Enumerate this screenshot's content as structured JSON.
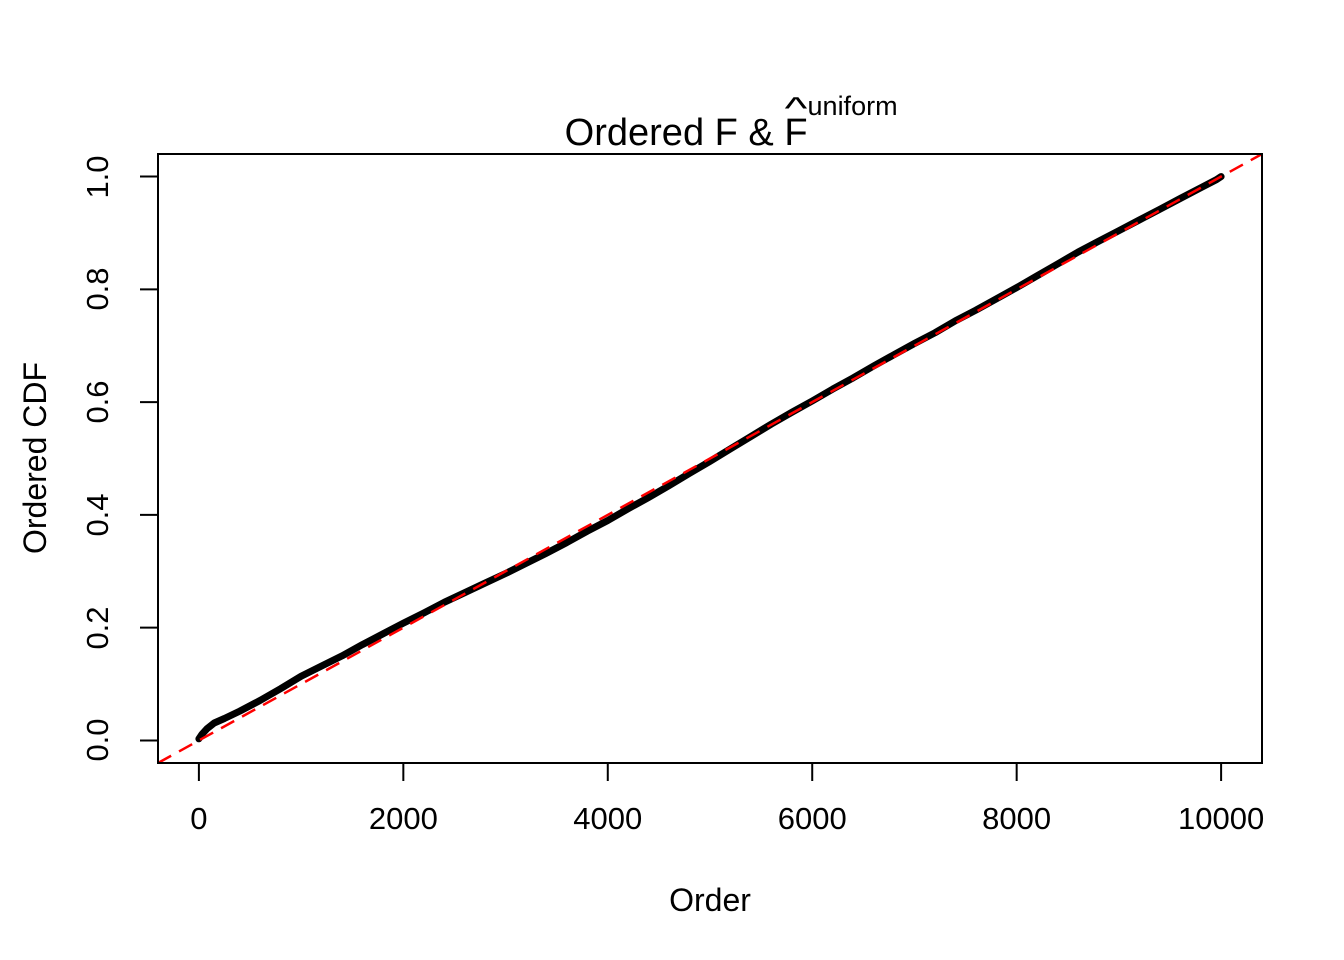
{
  "title": {
    "prefix": "Ordered F & ",
    "f": "F",
    "hat": "^",
    "superscript": "uniform"
  },
  "axes": {
    "x_label": "Order",
    "y_label": "Ordered CDF",
    "x_tick_labels": [
      "0",
      "2000",
      "4000",
      "6000",
      "8000",
      "10000"
    ],
    "y_tick_labels": [
      "0.0",
      "0.2",
      "0.4",
      "0.6",
      "0.8",
      "1.0"
    ]
  },
  "colors": {
    "curve": "#000000",
    "reference_line": "#FF0000",
    "axis": "#000000",
    "background": "#FFFFFF"
  },
  "chart_data": {
    "type": "line",
    "title": "Ordered F & hat(F)^uniform",
    "xlabel": "Order",
    "ylabel": "Ordered CDF",
    "x_ticks": [
      0,
      2000,
      4000,
      6000,
      8000,
      10000
    ],
    "y_ticks": [
      0.0,
      0.2,
      0.4,
      0.6,
      0.8,
      1.0
    ],
    "xlim": [
      0,
      10000
    ],
    "ylim": [
      0.0,
      1.0
    ],
    "axis_padding_fraction": 0.04,
    "grid": false,
    "legend": "none",
    "series": [
      {
        "name": "ordered_cdf",
        "style": "thick-point-curve",
        "color": "#000000",
        "points": [
          [
            0,
            0.003
          ],
          [
            30,
            0.011
          ],
          [
            80,
            0.021
          ],
          [
            150,
            0.031
          ],
          [
            250,
            0.039
          ],
          [
            400,
            0.052
          ],
          [
            600,
            0.071
          ],
          [
            800,
            0.092
          ],
          [
            1000,
            0.114
          ],
          [
            1200,
            0.132
          ],
          [
            1400,
            0.15
          ],
          [
            1600,
            0.17
          ],
          [
            1800,
            0.189
          ],
          [
            2000,
            0.208
          ],
          [
            2200,
            0.226
          ],
          [
            2400,
            0.245
          ],
          [
            2600,
            0.262
          ],
          [
            2800,
            0.279
          ],
          [
            3000,
            0.296
          ],
          [
            3200,
            0.314
          ],
          [
            3400,
            0.332
          ],
          [
            3600,
            0.351
          ],
          [
            3800,
            0.371
          ],
          [
            4000,
            0.39
          ],
          [
            4200,
            0.411
          ],
          [
            4400,
            0.431
          ],
          [
            4600,
            0.452
          ],
          [
            4800,
            0.474
          ],
          [
            5000,
            0.495
          ],
          [
            5200,
            0.517
          ],
          [
            5400,
            0.539
          ],
          [
            5600,
            0.561
          ],
          [
            5800,
            0.582
          ],
          [
            6000,
            0.602
          ],
          [
            6200,
            0.623
          ],
          [
            6400,
            0.643
          ],
          [
            6600,
            0.664
          ],
          [
            6800,
            0.684
          ],
          [
            7000,
            0.704
          ],
          [
            7200,
            0.723
          ],
          [
            7400,
            0.744
          ],
          [
            7600,
            0.763
          ],
          [
            7800,
            0.783
          ],
          [
            8000,
            0.803
          ],
          [
            8200,
            0.824
          ],
          [
            8400,
            0.845
          ],
          [
            8600,
            0.866
          ],
          [
            8800,
            0.885
          ],
          [
            9000,
            0.904
          ],
          [
            9200,
            0.923
          ],
          [
            9400,
            0.942
          ],
          [
            9600,
            0.961
          ],
          [
            9800,
            0.98
          ],
          [
            9950,
            0.994
          ],
          [
            10000,
            1.0
          ]
        ]
      },
      {
        "name": "uniform_reference",
        "style": "dashed-line",
        "color": "#FF0000",
        "intercept": 0,
        "slope": 0.0001
      }
    ]
  }
}
